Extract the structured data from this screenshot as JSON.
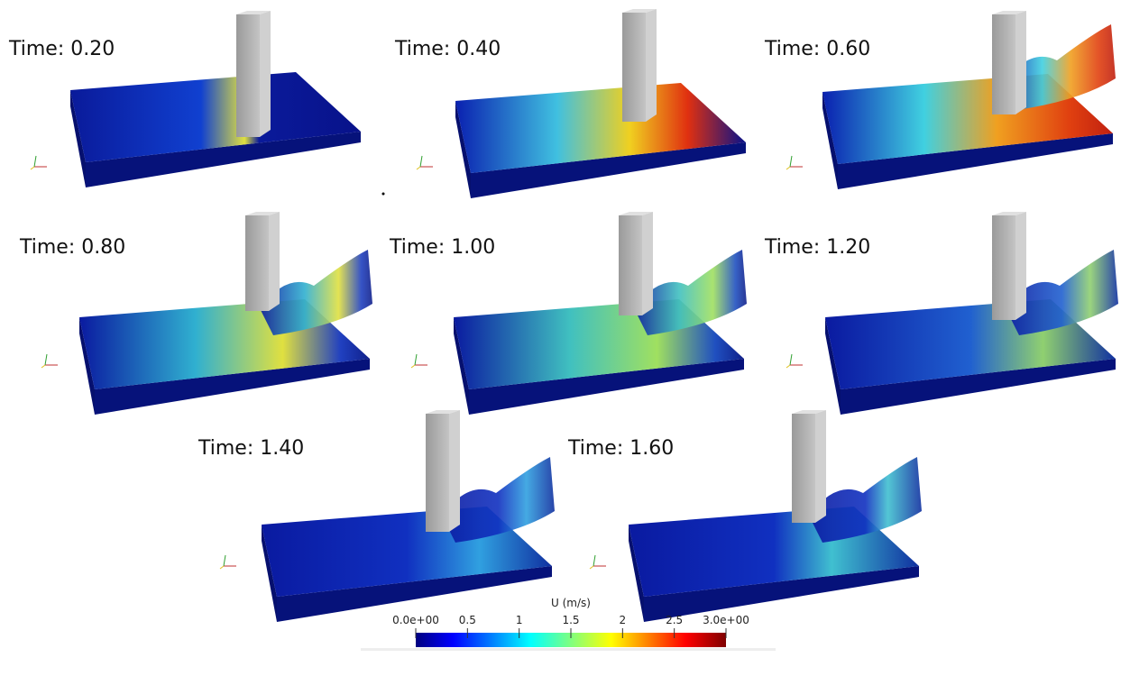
{
  "panels": [
    {
      "label": "Time: 0.20"
    },
    {
      "label": "Time: 0.40"
    },
    {
      "label": "Time: 0.60"
    },
    {
      "label": "Time: 0.80"
    },
    {
      "label": "Time: 1.00"
    },
    {
      "label": "Time: 1.20"
    },
    {
      "label": "Time: 1.40"
    },
    {
      "label": "Time: 1.60"
    }
  ],
  "colorbar": {
    "title": "U (m/s)",
    "range": [
      0,
      3
    ],
    "ticks": [
      {
        "value": 0,
        "label": "0.0e+00"
      },
      0.5,
      1,
      1.5,
      2,
      2.5,
      {
        "value": 3,
        "label": "3.0e+00"
      }
    ]
  }
}
